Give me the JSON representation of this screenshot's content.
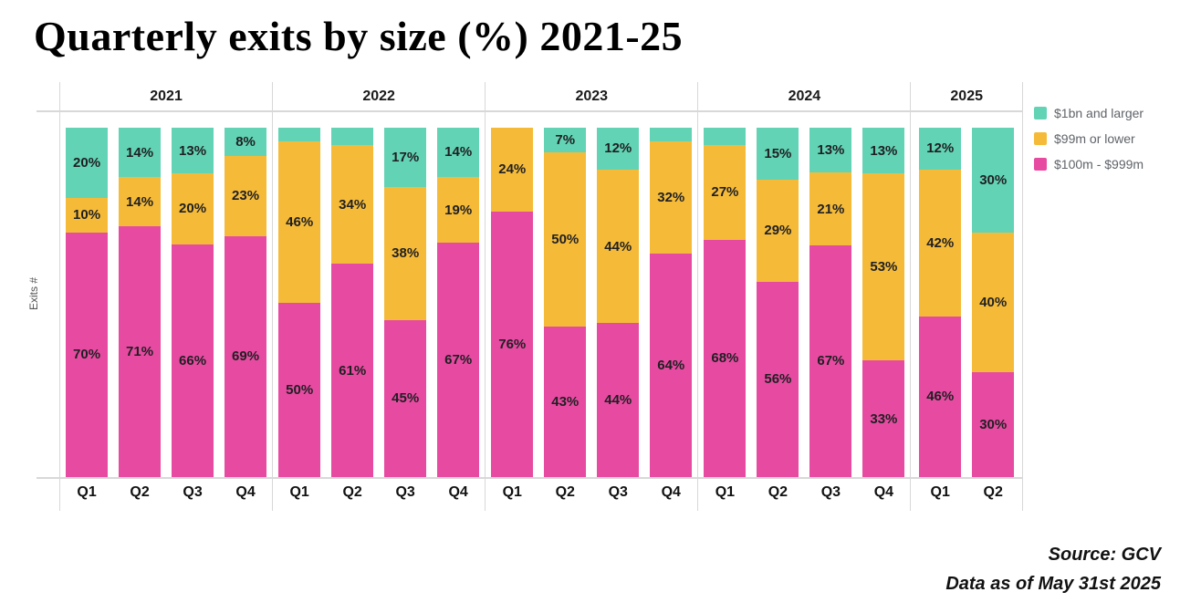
{
  "title": "Quarterly exits by size (%) 2021-25",
  "y_axis_label": "Exits #",
  "legend": [
    {
      "label": "$1bn and larger",
      "color": "#62D3B4"
    },
    {
      "label": "$99m or lower",
      "color": "#F5BB38"
    },
    {
      "label": "$100m - $999m",
      "color": "#E74BA1"
    }
  ],
  "source_line1": "Source: GCV",
  "source_line2": "Data as of May 31st 2025",
  "colors": {
    "teal": "#62D3B4",
    "yellow": "#F5BB38",
    "pink": "#E74BA1",
    "gridline": "#d8d8d8"
  },
  "chart_data": {
    "type": "bar",
    "stacked": true,
    "value_unit": "%",
    "title": "Quarterly exits by size (%) 2021-25",
    "ylabel": "Exits #",
    "legend_position": "top-right",
    "series_order_bottom_to_top": [
      "$100m - $999m",
      "$99m or lower",
      "$1bn and larger"
    ],
    "groups": [
      {
        "year": "2021",
        "bars": [
          {
            "quarter": "Q1",
            "segments": [
              {
                "series": "$100m - $999m",
                "value": 70,
                "label": "70%"
              },
              {
                "series": "$99m or lower",
                "value": 10,
                "label": "10%"
              },
              {
                "series": "$1bn and larger",
                "value": 20,
                "label": "20%"
              }
            ]
          },
          {
            "quarter": "Q2",
            "segments": [
              {
                "series": "$100m - $999m",
                "value": 71,
                "label": "71%"
              },
              {
                "series": "$99m or lower",
                "value": 14,
                "label": "14%"
              },
              {
                "series": "$1bn and larger",
                "value": 14,
                "label": "14%"
              }
            ]
          },
          {
            "quarter": "Q3",
            "segments": [
              {
                "series": "$100m - $999m",
                "value": 66,
                "label": "66%"
              },
              {
                "series": "$99m or lower",
                "value": 20,
                "label": "20%"
              },
              {
                "series": "$1bn and larger",
                "value": 13,
                "label": "13%"
              }
            ]
          },
          {
            "quarter": "Q4",
            "segments": [
              {
                "series": "$100m - $999m",
                "value": 69,
                "label": "69%"
              },
              {
                "series": "$99m or lower",
                "value": 23,
                "label": "23%"
              },
              {
                "series": "$1bn and larger",
                "value": 8,
                "label": "8%"
              }
            ]
          }
        ]
      },
      {
        "year": "2022",
        "bars": [
          {
            "quarter": "Q1",
            "segments": [
              {
                "series": "$100m - $999m",
                "value": 50,
                "label": "50%"
              },
              {
                "series": "$99m or lower",
                "value": 46,
                "label": "46%"
              },
              {
                "series": "$1bn and larger",
                "value": 4,
                "label": ""
              }
            ]
          },
          {
            "quarter": "Q2",
            "segments": [
              {
                "series": "$100m - $999m",
                "value": 61,
                "label": "61%"
              },
              {
                "series": "$99m or lower",
                "value": 34,
                "label": "34%"
              },
              {
                "series": "$1bn and larger",
                "value": 5,
                "label": ""
              }
            ]
          },
          {
            "quarter": "Q3",
            "segments": [
              {
                "series": "$100m - $999m",
                "value": 45,
                "label": "45%"
              },
              {
                "series": "$99m or lower",
                "value": 38,
                "label": "38%"
              },
              {
                "series": "$1bn and larger",
                "value": 17,
                "label": "17%"
              }
            ]
          },
          {
            "quarter": "Q4",
            "segments": [
              {
                "series": "$100m - $999m",
                "value": 67,
                "label": "67%"
              },
              {
                "series": "$99m or lower",
                "value": 19,
                "label": "19%"
              },
              {
                "series": "$1bn and larger",
                "value": 14,
                "label": "14%"
              }
            ]
          }
        ]
      },
      {
        "year": "2023",
        "bars": [
          {
            "quarter": "Q1",
            "segments": [
              {
                "series": "$100m - $999m",
                "value": 76,
                "label": "76%"
              },
              {
                "series": "$99m or lower",
                "value": 24,
                "label": "24%"
              },
              {
                "series": "$1bn and larger",
                "value": 0,
                "label": ""
              }
            ]
          },
          {
            "quarter": "Q2",
            "segments": [
              {
                "series": "$100m - $999m",
                "value": 43,
                "label": "43%"
              },
              {
                "series": "$99m or lower",
                "value": 50,
                "label": "50%"
              },
              {
                "series": "$1bn and larger",
                "value": 7,
                "label": "7%"
              }
            ]
          },
          {
            "quarter": "Q3",
            "segments": [
              {
                "series": "$100m - $999m",
                "value": 44,
                "label": "44%"
              },
              {
                "series": "$99m or lower",
                "value": 44,
                "label": "44%"
              },
              {
                "series": "$1bn and larger",
                "value": 12,
                "label": "12%"
              }
            ]
          },
          {
            "quarter": "Q4",
            "segments": [
              {
                "series": "$100m - $999m",
                "value": 64,
                "label": "64%"
              },
              {
                "series": "$99m or lower",
                "value": 32,
                "label": "32%"
              },
              {
                "series": "$1bn and larger",
                "value": 4,
                "label": ""
              }
            ]
          }
        ]
      },
      {
        "year": "2024",
        "bars": [
          {
            "quarter": "Q1",
            "segments": [
              {
                "series": "$100m - $999m",
                "value": 68,
                "label": "68%"
              },
              {
                "series": "$99m or lower",
                "value": 27,
                "label": "27%"
              },
              {
                "series": "$1bn and larger",
                "value": 5,
                "label": ""
              }
            ]
          },
          {
            "quarter": "Q2",
            "segments": [
              {
                "series": "$100m - $999m",
                "value": 56,
                "label": "56%"
              },
              {
                "series": "$99m or lower",
                "value": 29,
                "label": "29%"
              },
              {
                "series": "$1bn and larger",
                "value": 15,
                "label": "15%"
              }
            ]
          },
          {
            "quarter": "Q3",
            "segments": [
              {
                "series": "$100m - $999m",
                "value": 67,
                "label": "67%"
              },
              {
                "series": "$99m or lower",
                "value": 21,
                "label": "21%"
              },
              {
                "series": "$1bn and larger",
                "value": 13,
                "label": "13%"
              }
            ]
          },
          {
            "quarter": "Q4",
            "segments": [
              {
                "series": "$100m - $999m",
                "value": 33,
                "label": "33%"
              },
              {
                "series": "$99m or lower",
                "value": 53,
                "label": "53%"
              },
              {
                "series": "$1bn and larger",
                "value": 13,
                "label": "13%"
              }
            ]
          }
        ]
      },
      {
        "year": "2025",
        "bars": [
          {
            "quarter": "Q1",
            "segments": [
              {
                "series": "$100m - $999m",
                "value": 46,
                "label": "46%"
              },
              {
                "series": "$99m or lower",
                "value": 42,
                "label": "42%"
              },
              {
                "series": "$1bn and larger",
                "value": 12,
                "label": "12%"
              }
            ]
          },
          {
            "quarter": "Q2",
            "segments": [
              {
                "series": "$100m - $999m",
                "value": 30,
                "label": "30%"
              },
              {
                "series": "$99m or lower",
                "value": 40,
                "label": "40%"
              },
              {
                "series": "$1bn and larger",
                "value": 30,
                "label": "30%"
              }
            ]
          }
        ]
      }
    ]
  }
}
